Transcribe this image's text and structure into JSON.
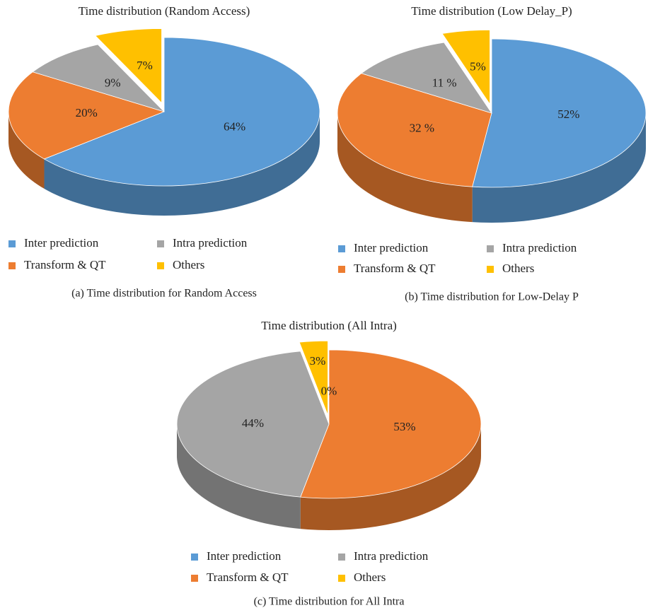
{
  "chart_data": [
    {
      "type": "pie",
      "title": "Time distribution (Random Access)",
      "caption": "(a) Time distribution for Random Access",
      "categories": [
        "Inter prediction",
        "Transform & QT",
        "Intra prediction",
        "Others"
      ],
      "values": [
        64,
        20,
        9,
        7
      ],
      "value_labels": [
        "64%",
        "20%",
        "9%",
        "7%"
      ],
      "colors": [
        "#5b9bd5",
        "#ed7d31",
        "#a5a5a5",
        "#ffc000"
      ]
    },
    {
      "type": "pie",
      "title": "Time distribution (Low Delay_P)",
      "caption": "(b) Time distribution for Low-Delay P",
      "categories": [
        "Inter prediction",
        "Transform & QT",
        "Intra prediction",
        "Others"
      ],
      "values": [
        52,
        32,
        11,
        5
      ],
      "value_labels": [
        "52%",
        "32 %",
        "11 %",
        "5%"
      ],
      "colors": [
        "#5b9bd5",
        "#ed7d31",
        "#a5a5a5",
        "#ffc000"
      ]
    },
    {
      "type": "pie",
      "title": "Time distribution (All Intra)",
      "caption": "(c) Time distribution for All Intra",
      "categories": [
        "Inter prediction",
        "Transform & QT",
        "Intra prediction",
        "Others"
      ],
      "values": [
        0,
        53,
        44,
        3
      ],
      "value_labels": [
        "0%",
        "53%",
        "44%",
        "3%"
      ],
      "colors": [
        "#5b9bd5",
        "#ed7d31",
        "#a5a5a5",
        "#ffc000"
      ]
    }
  ]
}
